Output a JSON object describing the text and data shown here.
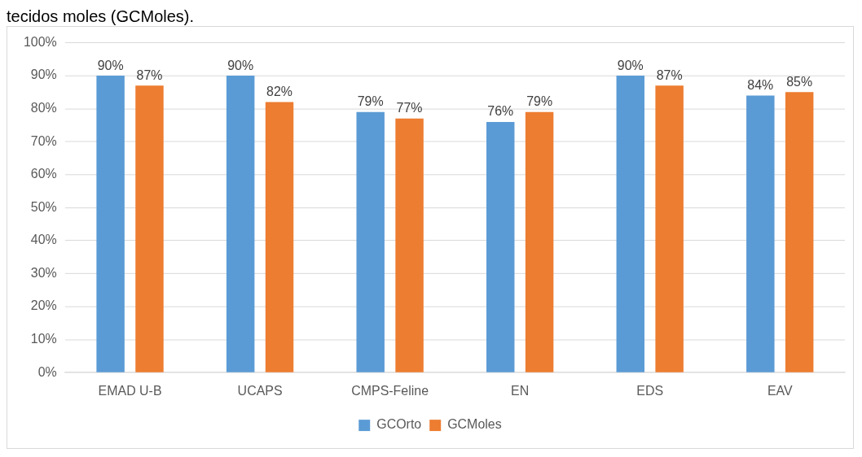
{
  "chart_data": {
    "type": "bar",
    "annotations": [
      "tecidos moles (GCMoles)."
    ],
    "categories": [
      "EMAD U-B",
      "UCAPS",
      "CMPS-Feline",
      "EN",
      "EDS",
      "EAV"
    ],
    "series": [
      {
        "name": "GCOrto",
        "color": "#5b9bd5",
        "values": [
          90,
          90,
          79,
          76,
          90,
          84
        ],
        "value_labels": [
          "90%",
          "90%",
          "79%",
          "76%",
          "90%",
          "84%"
        ]
      },
      {
        "name": "GCMoles",
        "color": "#ed7d31",
        "values": [
          87,
          82,
          77,
          79,
          87,
          85
        ],
        "value_labels": [
          "87%",
          "82%",
          "77%",
          "79%",
          "87%",
          "85%"
        ]
      }
    ],
    "ylim": [
      0,
      100
    ],
    "yticks": [
      {
        "value": 0,
        "label": "0%"
      },
      {
        "value": 10,
        "label": "10%"
      },
      {
        "value": 20,
        "label": "20%"
      },
      {
        "value": 30,
        "label": "30%"
      },
      {
        "value": 40,
        "label": "40%"
      },
      {
        "value": 50,
        "label": "50%"
      },
      {
        "value": 60,
        "label": "60%"
      },
      {
        "value": 70,
        "label": "70%"
      },
      {
        "value": 80,
        "label": "80%"
      },
      {
        "value": 90,
        "label": "90%"
      },
      {
        "value": 100,
        "label": "100%"
      }
    ],
    "grid": "y",
    "legend": "bottom"
  }
}
